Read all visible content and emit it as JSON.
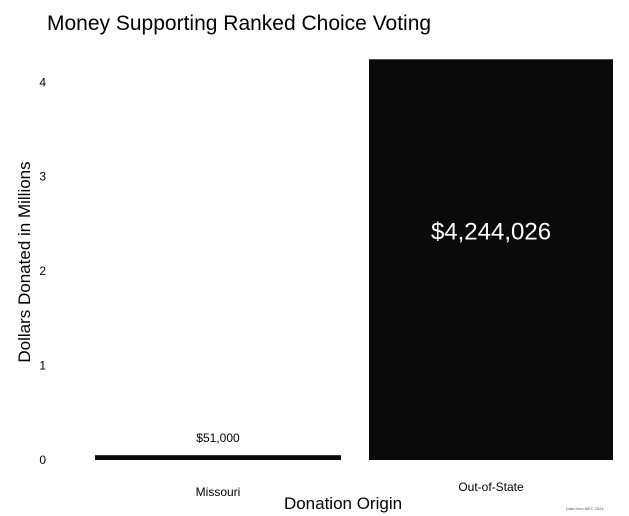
{
  "chart_data": {
    "type": "bar",
    "title": "Money Supporting Ranked Choice Voting",
    "xlabel": "Donation Origin",
    "ylabel": "Dollars Donated in Millions",
    "categories": [
      "Missouri",
      "Out-of-State"
    ],
    "values": [
      0.051,
      4.244026
    ],
    "data_labels": [
      "$51,000",
      "$4,244,026"
    ],
    "yticks": [
      "0",
      "1",
      "2",
      "3",
      "4"
    ],
    "ylim": [
      0,
      4.3
    ],
    "grid": false,
    "source_note": "Data from MEC 2024",
    "bar_color": "#0a0a0a",
    "inside_label_color": "#ffffff"
  }
}
